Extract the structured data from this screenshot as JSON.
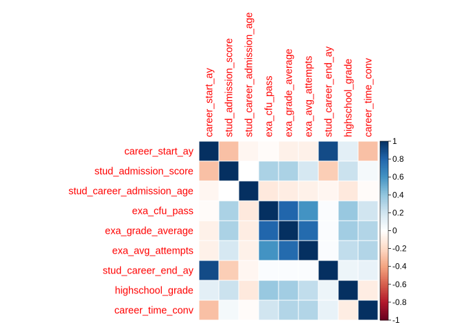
{
  "chart_data": {
    "type": "heatmap",
    "title": "",
    "variables": [
      "career_start_ay",
      "stud_admission_score",
      "stud_career_admission_age",
      "exa_cfu_pass",
      "exa_grade_average",
      "exa_avg_attempts",
      "stud_career_end_ay",
      "highschool_grade",
      "career_time_conv"
    ],
    "matrix": [
      [
        1.0,
        -0.3,
        -0.05,
        -0.02,
        -0.08,
        -0.08,
        0.9,
        0.12,
        -0.3
      ],
      [
        -0.3,
        1.0,
        0.0,
        0.32,
        0.32,
        0.18,
        -0.25,
        0.22,
        0.05
      ],
      [
        -0.05,
        0.0,
        1.0,
        -0.12,
        -0.1,
        -0.08,
        -0.05,
        -0.12,
        -0.02
      ],
      [
        -0.02,
        0.32,
        -0.12,
        1.0,
        0.8,
        0.6,
        0.02,
        0.38,
        0.2
      ],
      [
        -0.08,
        0.32,
        -0.1,
        0.8,
        1.0,
        0.78,
        0.02,
        0.35,
        0.3
      ],
      [
        -0.08,
        0.18,
        -0.08,
        0.6,
        0.78,
        1.0,
        0.02,
        0.25,
        0.3
      ],
      [
        0.9,
        -0.25,
        -0.05,
        0.02,
        0.02,
        0.02,
        1.0,
        0.08,
        0.1
      ],
      [
        0.12,
        0.22,
        -0.12,
        0.38,
        0.35,
        0.25,
        0.08,
        1.0,
        -0.1
      ],
      [
        -0.3,
        0.05,
        -0.02,
        0.2,
        0.3,
        0.3,
        0.1,
        -0.1,
        1.0
      ]
    ],
    "colorbar": {
      "range": [
        -1,
        1
      ],
      "ticks": [
        "1",
        "0.8",
        "0.6",
        "0.4",
        "0.2",
        "0",
        "-0.2",
        "-0.4",
        "-0.6",
        "-0.8",
        "-1"
      ],
      "placement": "right"
    },
    "colors": {
      "negative_end": "#67001f",
      "positive_end": "#053061",
      "label": "#ff0000"
    }
  }
}
